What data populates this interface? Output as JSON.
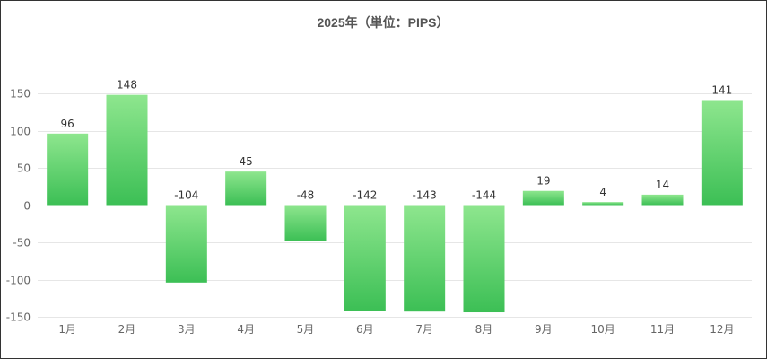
{
  "chart_data": {
    "type": "bar",
    "title": "2025年（単位：PIPS）",
    "categories": [
      "1月",
      "2月",
      "3月",
      "4月",
      "5月",
      "6月",
      "7月",
      "8月",
      "9月",
      "10月",
      "11月",
      "12月"
    ],
    "values": [
      96,
      148,
      -104,
      45,
      -48,
      -142,
      -143,
      -144,
      19,
      4,
      14,
      141
    ],
    "ylim": [
      -150,
      150
    ],
    "yticks": [
      -150,
      -100,
      -50,
      0,
      50,
      100,
      150
    ],
    "grid": true,
    "legend": "none",
    "bar_color_top": "#8ee68e",
    "bar_color_bottom": "#3cbf55"
  }
}
